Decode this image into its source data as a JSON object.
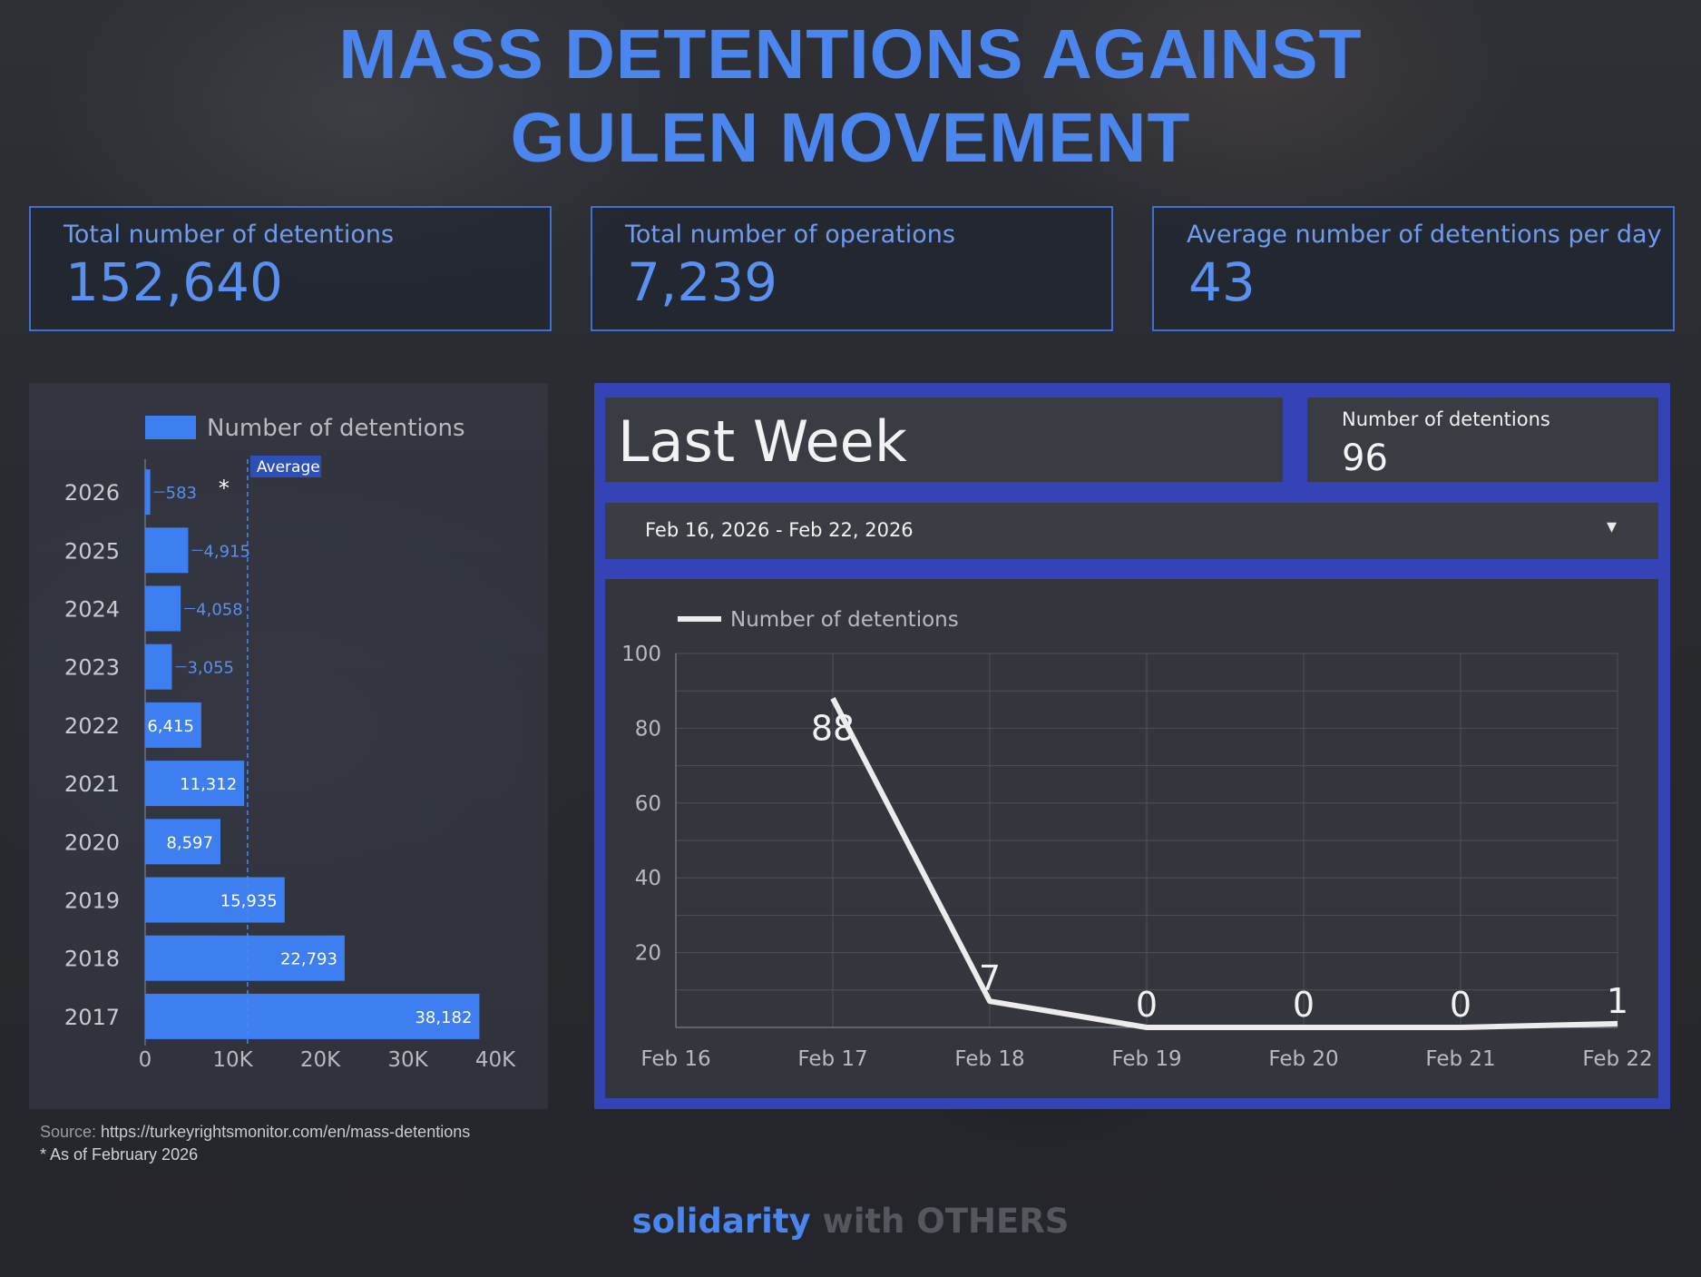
{
  "title_line1": "MASS DETENTIONS AGAINST",
  "title_line2": "GULEN MOVEMENT",
  "kpis": [
    {
      "label": "Total number of detentions",
      "value": "152,640"
    },
    {
      "label": "Total number of operations",
      "value": "7,239"
    },
    {
      "label": "Average number of detentions per day",
      "value": "43"
    }
  ],
  "last_week": {
    "heading": "Last Week",
    "metric_label": "Number of detentions",
    "metric_value": "96",
    "date_range": "Feb 16, 2026 - Feb 22, 2026",
    "dropdown_icon": "caret-down-icon"
  },
  "source_prefix": "Source:",
  "source_url": " https://turkeyrightsmonitor.com/en/mass-detentions",
  "footnote": "* As of February 2026",
  "brand": {
    "part1": "solidarity",
    "part2": " with OTHERS"
  },
  "colors": {
    "accent": "#4a86ee",
    "bar": "#3d7ef0",
    "line": "#ececec",
    "frame": "#3443b5"
  },
  "chart_data": [
    {
      "type": "bar",
      "orientation": "horizontal",
      "legend": "Number of detentions",
      "legend_position": "top",
      "categories": [
        "2026",
        "2025",
        "2024",
        "2023",
        "2022",
        "2021",
        "2020",
        "2019",
        "2018",
        "2017"
      ],
      "values": [
        583,
        4915,
        4058,
        3055,
        6415,
        11312,
        8597,
        15935,
        22793,
        38182
      ],
      "value_labels": [
        "583",
        "4,915",
        "4,058",
        "3,055",
        "6,415",
        "11,312",
        "8,597",
        "15,935",
        "22,793",
        "38,182"
      ],
      "category_marks": {
        "2026": "*"
      },
      "reference_line": {
        "label": "Average",
        "value": 11700
      },
      "xticks": [
        "0",
        "10K",
        "20K",
        "30K",
        "40K"
      ],
      "xlim": [
        0,
        40000
      ],
      "grid": false
    },
    {
      "type": "line",
      "legend": "Number of detentions",
      "legend_position": "top-left",
      "x": [
        "Feb 16",
        "Feb 17",
        "Feb 18",
        "Feb 19",
        "Feb 20",
        "Feb 21",
        "Feb 22"
      ],
      "points": [
        {
          "x": "Feb 17",
          "y": 88,
          "label": "88"
        },
        {
          "x": "Feb 18",
          "y": 7,
          "label": "7"
        },
        {
          "x": "Feb 19",
          "y": 0,
          "label": "0"
        },
        {
          "x": "Feb 20",
          "y": 0,
          "label": "0"
        },
        {
          "x": "Feb 21",
          "y": 0,
          "label": "0"
        },
        {
          "x": "Feb 22",
          "y": 1,
          "label": "1"
        }
      ],
      "yticks": [
        "20",
        "40",
        "60",
        "80",
        "100"
      ],
      "ylim": [
        0,
        100
      ],
      "grid": true
    }
  ]
}
